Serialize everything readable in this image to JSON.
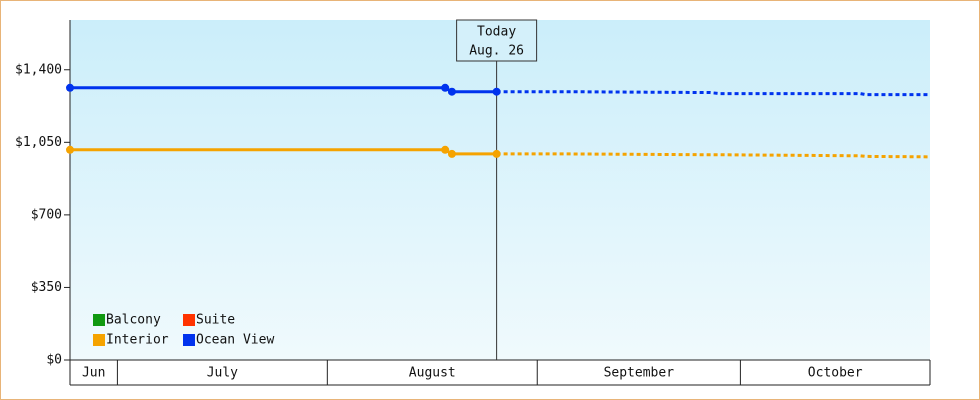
{
  "chart_data": {
    "type": "line",
    "categories": [
      "Jun",
      "July",
      "August",
      "September",
      "October"
    ],
    "xlim": [
      0,
      127
    ],
    "xticks": [
      0,
      7,
      38,
      69,
      99,
      127
    ],
    "ylim": [
      0,
      1640
    ],
    "yticks": [
      {
        "value": 0,
        "label": "$0"
      },
      {
        "value": 350,
        "label": "$350"
      },
      {
        "value": 700,
        "label": "$700"
      },
      {
        "value": 1050,
        "label": "$1,050"
      },
      {
        "value": 1400,
        "label": "$1,400"
      }
    ],
    "today": {
      "value": 63,
      "label": "Today",
      "date": "Aug. 26"
    },
    "series": [
      {
        "name": "Balcony",
        "color": "#119911",
        "x": [],
        "values": []
      },
      {
        "name": "Suite",
        "color": "#ff3300",
        "x": [],
        "values": []
      },
      {
        "name": "Interior",
        "color": "#f5a300",
        "x": [
          0,
          55.4,
          56.4,
          63,
          74,
          94.5,
          96,
          116.7,
          117.5,
          127
        ],
        "values": [
          1014,
          1014,
          994,
          994,
          994,
          990,
          990,
          985,
          982,
          980
        ]
      },
      {
        "name": "Ocean View",
        "color": "#0033ee",
        "x": [
          0,
          55.4,
          56.4,
          63,
          74,
          94.5,
          96,
          116.7,
          117.5,
          127
        ],
        "values": [
          1313,
          1313,
          1294,
          1294,
          1294,
          1290,
          1285,
          1285,
          1280,
          1280
        ]
      }
    ]
  }
}
